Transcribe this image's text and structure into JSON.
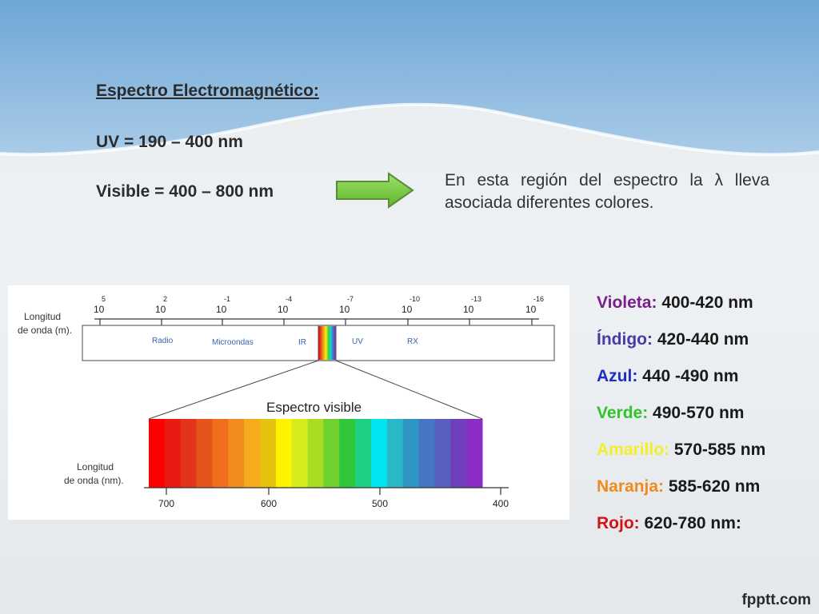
{
  "slide": {
    "title": "Espectro Electromagnético:",
    "uv_range": "UV = 190 – 400 nm",
    "visible_range": "Visible = 400 – 800 nm",
    "note": "En esta región del espectro la λ lleva asociada diferentes colores.",
    "brand": "fpptt.com"
  },
  "diagram": {
    "top_axis_label": [
      "Longitud",
      "de onda (m)."
    ],
    "top_ticks": [
      {
        "base": "10",
        "exp": "5"
      },
      {
        "base": "10",
        "exp": "2"
      },
      {
        "base": "10",
        "exp": "-1"
      },
      {
        "base": "10",
        "exp": "-4"
      },
      {
        "base": "10",
        "exp": "-7"
      },
      {
        "base": "10",
        "exp": "-10"
      },
      {
        "base": "10",
        "exp": "-13"
      },
      {
        "base": "10",
        "exp": "-16"
      }
    ],
    "regions": [
      "Radio",
      "Microondas",
      "IR",
      "UV",
      "RX"
    ],
    "visible_title": "Espectro visible",
    "bottom_axis_label": [
      "Longitud",
      "de onda (nm)."
    ],
    "bottom_ticks": [
      "700",
      "600",
      "500",
      "400"
    ],
    "spectrum_colors": [
      "#ff0000",
      "#e81a12",
      "#e2341a",
      "#e6541b",
      "#ef6f1d",
      "#f28c1f",
      "#f5ab1c",
      "#e4c20f",
      "#fff200",
      "#d7ec1c",
      "#a8dd23",
      "#6fd12b",
      "#31c73a",
      "#1fd083",
      "#00e5ef",
      "#28b8c8",
      "#2f95c5",
      "#4676c3",
      "#5a5fbd",
      "#6f3fbc",
      "#8a2cc6"
    ]
  },
  "legend": [
    {
      "name": "Violeta:",
      "range": "400-420 nm",
      "color": "#7a1f8a"
    },
    {
      "name": "Índigo:",
      "range": "420-440 nm",
      "color": "#4a3aa6"
    },
    {
      "name": "Azul:",
      "range": "440 -490 nm",
      "color": "#1e2fc8"
    },
    {
      "name": "Verde:",
      "range": "490-570 nm",
      "color": "#2fc42a"
    },
    {
      "name": "Amarillo:",
      "range": "570-585 nm",
      "color": "#f2ef2a"
    },
    {
      "name": "Naranja:",
      "range": "585-620 nm",
      "color": "#f08a1c"
    },
    {
      "name": "Rojo:",
      "range": "620-780 nm:",
      "color": "#d41414"
    }
  ]
}
